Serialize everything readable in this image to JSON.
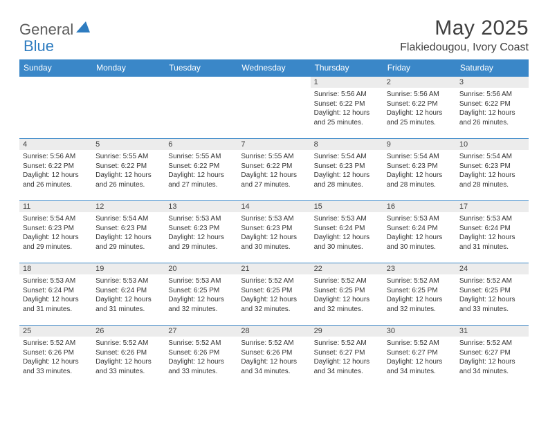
{
  "logo": {
    "part1": "General",
    "part2": "Blue"
  },
  "title": "May 2025",
  "location": "Flakiedougou, Ivory Coast",
  "colors": {
    "header_bg": "#3a87c8",
    "header_text": "#ffffff",
    "daynum_bg": "#ececec",
    "border": "#3a87c8",
    "logo_gray": "#5c5c5c",
    "logo_blue": "#2e7cc0",
    "title_color": "#404040"
  },
  "weekdays": [
    "Sunday",
    "Monday",
    "Tuesday",
    "Wednesday",
    "Thursday",
    "Friday",
    "Saturday"
  ],
  "weeks": [
    [
      null,
      null,
      null,
      null,
      {
        "n": "1",
        "sr": "5:56 AM",
        "ss": "6:22 PM",
        "dl": "12 hours and 25 minutes."
      },
      {
        "n": "2",
        "sr": "5:56 AM",
        "ss": "6:22 PM",
        "dl": "12 hours and 25 minutes."
      },
      {
        "n": "3",
        "sr": "5:56 AM",
        "ss": "6:22 PM",
        "dl": "12 hours and 26 minutes."
      }
    ],
    [
      {
        "n": "4",
        "sr": "5:56 AM",
        "ss": "6:22 PM",
        "dl": "12 hours and 26 minutes."
      },
      {
        "n": "5",
        "sr": "5:55 AM",
        "ss": "6:22 PM",
        "dl": "12 hours and 26 minutes."
      },
      {
        "n": "6",
        "sr": "5:55 AM",
        "ss": "6:22 PM",
        "dl": "12 hours and 27 minutes."
      },
      {
        "n": "7",
        "sr": "5:55 AM",
        "ss": "6:22 PM",
        "dl": "12 hours and 27 minutes."
      },
      {
        "n": "8",
        "sr": "5:54 AM",
        "ss": "6:23 PM",
        "dl": "12 hours and 28 minutes."
      },
      {
        "n": "9",
        "sr": "5:54 AM",
        "ss": "6:23 PM",
        "dl": "12 hours and 28 minutes."
      },
      {
        "n": "10",
        "sr": "5:54 AM",
        "ss": "6:23 PM",
        "dl": "12 hours and 28 minutes."
      }
    ],
    [
      {
        "n": "11",
        "sr": "5:54 AM",
        "ss": "6:23 PM",
        "dl": "12 hours and 29 minutes."
      },
      {
        "n": "12",
        "sr": "5:54 AM",
        "ss": "6:23 PM",
        "dl": "12 hours and 29 minutes."
      },
      {
        "n": "13",
        "sr": "5:53 AM",
        "ss": "6:23 PM",
        "dl": "12 hours and 29 minutes."
      },
      {
        "n": "14",
        "sr": "5:53 AM",
        "ss": "6:23 PM",
        "dl": "12 hours and 30 minutes."
      },
      {
        "n": "15",
        "sr": "5:53 AM",
        "ss": "6:24 PM",
        "dl": "12 hours and 30 minutes."
      },
      {
        "n": "16",
        "sr": "5:53 AM",
        "ss": "6:24 PM",
        "dl": "12 hours and 30 minutes."
      },
      {
        "n": "17",
        "sr": "5:53 AM",
        "ss": "6:24 PM",
        "dl": "12 hours and 31 minutes."
      }
    ],
    [
      {
        "n": "18",
        "sr": "5:53 AM",
        "ss": "6:24 PM",
        "dl": "12 hours and 31 minutes."
      },
      {
        "n": "19",
        "sr": "5:53 AM",
        "ss": "6:24 PM",
        "dl": "12 hours and 31 minutes."
      },
      {
        "n": "20",
        "sr": "5:53 AM",
        "ss": "6:25 PM",
        "dl": "12 hours and 32 minutes."
      },
      {
        "n": "21",
        "sr": "5:52 AM",
        "ss": "6:25 PM",
        "dl": "12 hours and 32 minutes."
      },
      {
        "n": "22",
        "sr": "5:52 AM",
        "ss": "6:25 PM",
        "dl": "12 hours and 32 minutes."
      },
      {
        "n": "23",
        "sr": "5:52 AM",
        "ss": "6:25 PM",
        "dl": "12 hours and 32 minutes."
      },
      {
        "n": "24",
        "sr": "5:52 AM",
        "ss": "6:25 PM",
        "dl": "12 hours and 33 minutes."
      }
    ],
    [
      {
        "n": "25",
        "sr": "5:52 AM",
        "ss": "6:26 PM",
        "dl": "12 hours and 33 minutes."
      },
      {
        "n": "26",
        "sr": "5:52 AM",
        "ss": "6:26 PM",
        "dl": "12 hours and 33 minutes."
      },
      {
        "n": "27",
        "sr": "5:52 AM",
        "ss": "6:26 PM",
        "dl": "12 hours and 33 minutes."
      },
      {
        "n": "28",
        "sr": "5:52 AM",
        "ss": "6:26 PM",
        "dl": "12 hours and 34 minutes."
      },
      {
        "n": "29",
        "sr": "5:52 AM",
        "ss": "6:27 PM",
        "dl": "12 hours and 34 minutes."
      },
      {
        "n": "30",
        "sr": "5:52 AM",
        "ss": "6:27 PM",
        "dl": "12 hours and 34 minutes."
      },
      {
        "n": "31",
        "sr": "5:52 AM",
        "ss": "6:27 PM",
        "dl": "12 hours and 34 minutes."
      }
    ]
  ],
  "labels": {
    "sunrise": "Sunrise:",
    "sunset": "Sunset:",
    "daylight": "Daylight:"
  }
}
